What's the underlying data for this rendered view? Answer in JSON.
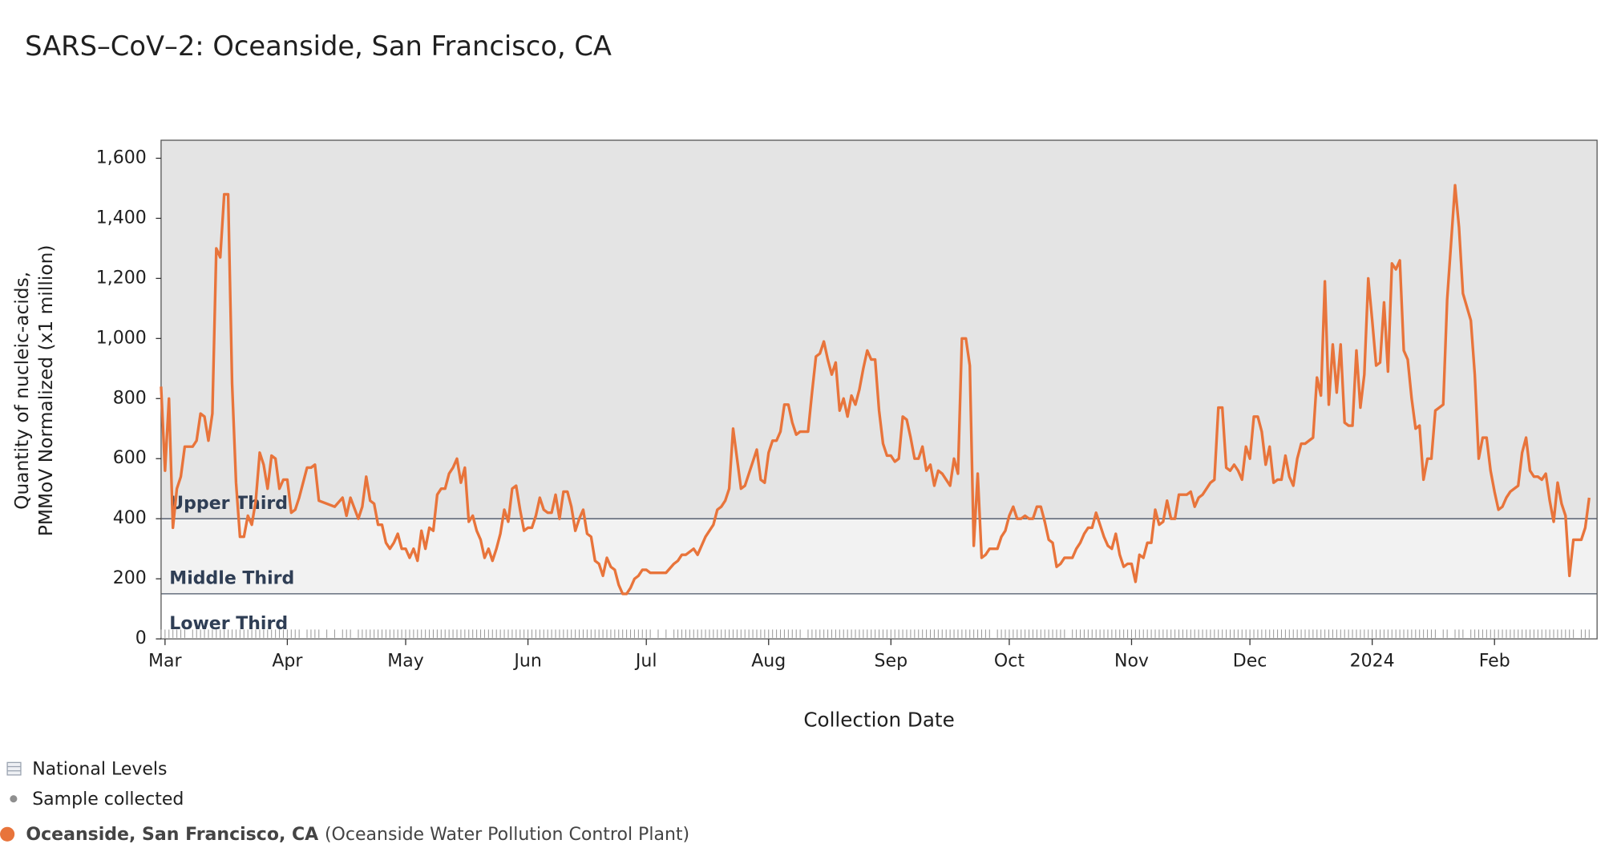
{
  "chart_data": {
    "type": "line",
    "title": "SARS–CoV–2: Oceanside, San Francisco, CA",
    "ylabel": [
      "Quantity of nucleic-acids,",
      "PMMoV Normalized (x1 million)"
    ],
    "xlabel": "Collection Date",
    "xlim": [
      "2023-02-28",
      "2024-02-27"
    ],
    "xticks": [
      {
        "value": "2023-03-01",
        "label": "Mar"
      },
      {
        "value": "2023-04-01",
        "label": "Apr"
      },
      {
        "value": "2023-05-01",
        "label": "May"
      },
      {
        "value": "2023-06-01",
        "label": "Jun"
      },
      {
        "value": "2023-07-01",
        "label": "Jul"
      },
      {
        "value": "2023-08-01",
        "label": "Aug"
      },
      {
        "value": "2023-09-01",
        "label": "Sep"
      },
      {
        "value": "2023-10-01",
        "label": "Oct"
      },
      {
        "value": "2023-11-01",
        "label": "Nov"
      },
      {
        "value": "2023-12-01",
        "label": "Dec"
      },
      {
        "value": "2024-01-01",
        "label": "2024"
      },
      {
        "value": "2024-02-01",
        "label": "Feb"
      }
    ],
    "ylim": [
      0,
      1660
    ],
    "yticks": [
      0,
      200,
      400,
      600,
      800,
      {
        "value": 1000,
        "label": "1,000"
      },
      {
        "value": 1200,
        "label": "1,200"
      },
      {
        "value": 1400,
        "label": "1,400"
      },
      {
        "value": 1600,
        "label": "1,600"
      }
    ],
    "bands": [
      {
        "label": "Lower Third",
        "from": 0,
        "color": "#ffffff"
      },
      {
        "label": "Middle Third",
        "from": 150,
        "color": "#f2f2f2"
      },
      {
        "label": "Upper Third",
        "from": 400,
        "color": "#e4e4e4"
      }
    ],
    "legend": {
      "national": "National Levels",
      "samples": "Sample collected"
    },
    "x": [
      "2023-02-28",
      "2023-03-01",
      "2023-03-02",
      "2023-03-03",
      "2023-03-04",
      "2023-03-05",
      "2023-03-06",
      "2023-03-08",
      "2023-03-09",
      "2023-03-10",
      "2023-03-11",
      "2023-03-12",
      "2023-03-13",
      "2023-03-14",
      "2023-03-15",
      "2023-03-16",
      "2023-03-17",
      "2023-03-18",
      "2023-03-19",
      "2023-03-20",
      "2023-03-21",
      "2023-03-22",
      "2023-03-23",
      "2023-03-24",
      "2023-03-25",
      "2023-03-26",
      "2023-03-27",
      "2023-03-28",
      "2023-03-29",
      "2023-03-30",
      "2023-03-31",
      "2023-04-01",
      "2023-04-02",
      "2023-04-03",
      "2023-04-04",
      "2023-04-06",
      "2023-04-07",
      "2023-04-08",
      "2023-04-09",
      "2023-04-11",
      "2023-04-13",
      "2023-04-15",
      "2023-04-16",
      "2023-04-17",
      "2023-04-19",
      "2023-04-20",
      "2023-04-21",
      "2023-04-22",
      "2023-04-23",
      "2023-04-24",
      "2023-04-25",
      "2023-04-26",
      "2023-04-27",
      "2023-04-28",
      "2023-04-29",
      "2023-04-30",
      "2023-05-01",
      "2023-05-02",
      "2023-05-03",
      "2023-05-04",
      "2023-05-05",
      "2023-05-06",
      "2023-05-07",
      "2023-05-08",
      "2023-05-09",
      "2023-05-10",
      "2023-05-11",
      "2023-05-12",
      "2023-05-13",
      "2023-05-14",
      "2023-05-15",
      "2023-05-16",
      "2023-05-17",
      "2023-05-18",
      "2023-05-19",
      "2023-05-20",
      "2023-05-21",
      "2023-05-22",
      "2023-05-23",
      "2023-05-24",
      "2023-05-25",
      "2023-05-26",
      "2023-05-27",
      "2023-05-28",
      "2023-05-29",
      "2023-05-30",
      "2023-05-31",
      "2023-06-01",
      "2023-06-02",
      "2023-06-03",
      "2023-06-04",
      "2023-06-05",
      "2023-06-06",
      "2023-06-07",
      "2023-06-08",
      "2023-06-09",
      "2023-06-10",
      "2023-06-11",
      "2023-06-12",
      "2023-06-13",
      "2023-06-14",
      "2023-06-15",
      "2023-06-16",
      "2023-06-17",
      "2023-06-18",
      "2023-06-19",
      "2023-06-20",
      "2023-06-21",
      "2023-06-22",
      "2023-06-23",
      "2023-06-24",
      "2023-06-25",
      "2023-06-26",
      "2023-06-27",
      "2023-06-28",
      "2023-06-29",
      "2023-06-30",
      "2023-07-01",
      "2023-07-02",
      "2023-07-04",
      "2023-07-06",
      "2023-07-08",
      "2023-07-09",
      "2023-07-10",
      "2023-07-11",
      "2023-07-12",
      "2023-07-13",
      "2023-07-14",
      "2023-07-15",
      "2023-07-16",
      "2023-07-17",
      "2023-07-18",
      "2023-07-19",
      "2023-07-20",
      "2023-07-21",
      "2023-07-22",
      "2023-07-23",
      "2023-07-24",
      "2023-07-25",
      "2023-07-26",
      "2023-07-27",
      "2023-07-28",
      "2023-07-29",
      "2023-07-30",
      "2023-07-31",
      "2023-08-01",
      "2023-08-02",
      "2023-08-03",
      "2023-08-04",
      "2023-08-05",
      "2023-08-06",
      "2023-08-07",
      "2023-08-08",
      "2023-08-09",
      "2023-08-11",
      "2023-08-12",
      "2023-08-13",
      "2023-08-14",
      "2023-08-15",
      "2023-08-16",
      "2023-08-17",
      "2023-08-18",
      "2023-08-19",
      "2023-08-20",
      "2023-08-21",
      "2023-08-22",
      "2023-08-23",
      "2023-08-24",
      "2023-08-25",
      "2023-08-26",
      "2023-08-27",
      "2023-08-28",
      "2023-08-29",
      "2023-08-30",
      "2023-08-31",
      "2023-09-01",
      "2023-09-02",
      "2023-09-03",
      "2023-09-04",
      "2023-09-05",
      "2023-09-06",
      "2023-09-07",
      "2023-09-08",
      "2023-09-09",
      "2023-09-10",
      "2023-09-11",
      "2023-09-12",
      "2023-09-13",
      "2023-09-14",
      "2023-09-15",
      "2023-09-16",
      "2023-09-17",
      "2023-09-18",
      "2023-09-19",
      "2023-09-20",
      "2023-09-21",
      "2023-09-22",
      "2023-09-23",
      "2023-09-24",
      "2023-09-25",
      "2023-09-26",
      "2023-09-28",
      "2023-09-29",
      "2023-09-30",
      "2023-10-01",
      "2023-10-02",
      "2023-10-03",
      "2023-10-04",
      "2023-10-05",
      "2023-10-06",
      "2023-10-07",
      "2023-10-08",
      "2023-10-09",
      "2023-10-10",
      "2023-10-11",
      "2023-10-12",
      "2023-10-13",
      "2023-10-14",
      "2023-10-15",
      "2023-10-17",
      "2023-10-18",
      "2023-10-19",
      "2023-10-20",
      "2023-10-21",
      "2023-10-22",
      "2023-10-23",
      "2023-10-24",
      "2023-10-25",
      "2023-10-26",
      "2023-10-27",
      "2023-10-28",
      "2023-10-29",
      "2023-10-30",
      "2023-10-31",
      "2023-11-01",
      "2023-11-02",
      "2023-11-03",
      "2023-11-04",
      "2023-11-05",
      "2023-11-06",
      "2023-11-07",
      "2023-11-08",
      "2023-11-09",
      "2023-11-10",
      "2023-11-11",
      "2023-11-12",
      "2023-11-13",
      "2023-11-14",
      "2023-11-15",
      "2023-11-16",
      "2023-11-17",
      "2023-11-18",
      "2023-11-19",
      "2023-11-20",
      "2023-11-21",
      "2023-11-22",
      "2023-11-23",
      "2023-11-24",
      "2023-11-25",
      "2023-11-26",
      "2023-11-27",
      "2023-11-28",
      "2023-11-29",
      "2023-11-30",
      "2023-12-01",
      "2023-12-02",
      "2023-12-03",
      "2023-12-04",
      "2023-12-05",
      "2023-12-06",
      "2023-12-07",
      "2023-12-08",
      "2023-12-09",
      "2023-12-10",
      "2023-12-11",
      "2023-12-12",
      "2023-12-13",
      "2023-12-14",
      "2023-12-15",
      "2023-12-16",
      "2023-12-17",
      "2023-12-18",
      "2023-12-19",
      "2023-12-20",
      "2023-12-21",
      "2023-12-22",
      "2023-12-23",
      "2023-12-24",
      "2023-12-25",
      "2023-12-26",
      "2023-12-27",
      "2023-12-28",
      "2023-12-29",
      "2023-12-30",
      "2023-12-31",
      "2024-01-01",
      "2024-01-02",
      "2024-01-03",
      "2024-01-04",
      "2024-01-05",
      "2024-01-06",
      "2024-01-07",
      "2024-01-08",
      "2024-01-09",
      "2024-01-10",
      "2024-01-11",
      "2024-01-12",
      "2024-01-13",
      "2024-01-14",
      "2024-01-15",
      "2024-01-16",
      "2024-01-17",
      "2024-01-19",
      "2024-01-20",
      "2024-01-22",
      "2024-01-23",
      "2024-01-24",
      "2024-01-26",
      "2024-01-27",
      "2024-01-28",
      "2024-01-29",
      "2024-01-30",
      "2024-01-31",
      "2024-02-01",
      "2024-02-02",
      "2024-02-03",
      "2024-02-04",
      "2024-02-05",
      "2024-02-06",
      "2024-02-07",
      "2024-02-08",
      "2024-02-09",
      "2024-02-10",
      "2024-02-11",
      "2024-02-12",
      "2024-02-13",
      "2024-02-14",
      "2024-02-15",
      "2024-02-16",
      "2024-02-17",
      "2024-02-18",
      "2024-02-19",
      "2024-02-20",
      "2024-02-21",
      "2024-02-23",
      "2024-02-24",
      "2024-02-25"
    ],
    "series": [
      {
        "name": "Oceanside, San Francisco, CA",
        "note": "(Oceanside Water Pollution Control Plant)",
        "color": "#e8743b",
        "values": [
          840,
          560,
          800,
          370,
          500,
          540,
          640,
          640,
          660,
          750,
          740,
          660,
          750,
          1300,
          1270,
          1480,
          1480,
          850,
          520,
          340,
          340,
          410,
          380,
          460,
          620,
          580,
          500,
          610,
          600,
          500,
          530,
          530,
          420,
          430,
          470,
          570,
          570,
          580,
          460,
          450,
          440,
          470,
          410,
          470,
          400,
          440,
          540,
          460,
          450,
          380,
          380,
          320,
          300,
          320,
          350,
          300,
          300,
          270,
          300,
          260,
          360,
          300,
          370,
          360,
          480,
          500,
          500,
          550,
          570,
          600,
          520,
          570,
          390,
          410,
          360,
          330,
          270,
          300,
          260,
          300,
          350,
          430,
          390,
          500,
          510,
          430,
          360,
          370,
          370,
          410,
          470,
          430,
          420,
          420,
          480,
          400,
          490,
          490,
          440,
          360,
          400,
          430,
          350,
          340,
          260,
          250,
          210,
          270,
          240,
          230,
          180,
          150,
          150,
          170,
          200,
          210,
          230,
          230,
          220,
          220,
          220,
          250,
          260,
          280,
          280,
          290,
          300,
          280,
          310,
          340,
          360,
          380,
          430,
          440,
          460,
          500,
          700,
          600,
          500,
          510,
          550,
          590,
          630,
          530,
          520,
          620,
          660,
          660,
          690,
          780,
          780,
          720,
          680,
          690,
          690,
          820,
          940,
          950,
          990,
          930,
          880,
          920,
          760,
          800,
          740,
          810,
          780,
          830,
          900,
          960,
          930,
          930,
          760,
          650,
          610,
          610,
          590,
          600,
          740,
          730,
          670,
          600,
          600,
          640,
          560,
          580,
          510,
          560,
          550,
          530,
          510,
          600,
          550,
          1000,
          1000,
          910,
          310,
          550,
          270,
          280,
          300,
          300,
          340,
          360,
          410,
          440,
          400,
          400,
          410,
          400,
          400,
          440,
          440,
          390,
          330,
          320,
          240,
          250,
          270,
          270,
          300,
          320,
          350,
          370,
          370,
          420,
          380,
          340,
          310,
          300,
          350,
          280,
          240,
          250,
          250,
          190,
          280,
          270,
          320,
          320,
          430,
          380,
          390,
          460,
          400,
          400,
          480,
          480,
          480,
          490,
          440,
          470,
          480,
          500,
          520,
          530,
          770,
          770,
          570,
          560,
          580,
          560,
          530,
          640,
          600,
          740,
          740,
          690,
          580,
          640,
          520,
          530,
          530,
          610,
          540,
          510,
          600,
          650,
          650,
          660,
          670,
          870,
          810,
          1190,
          780,
          980,
          820,
          980,
          720,
          710,
          710,
          960,
          770,
          880,
          1200,
          1060,
          910,
          920,
          1120,
          890,
          1250,
          1230,
          1260,
          960,
          930,
          800,
          700,
          710,
          530,
          600,
          600,
          760,
          780,
          1130,
          1510,
          1370,
          1150,
          1060,
          880,
          600,
          670,
          670,
          560,
          490,
          430,
          440,
          470,
          490,
          500,
          510,
          620,
          670,
          560,
          540,
          540,
          530,
          550,
          460,
          390,
          520,
          450,
          410,
          210,
          330,
          330,
          370,
          470
        ]
      }
    ]
  }
}
